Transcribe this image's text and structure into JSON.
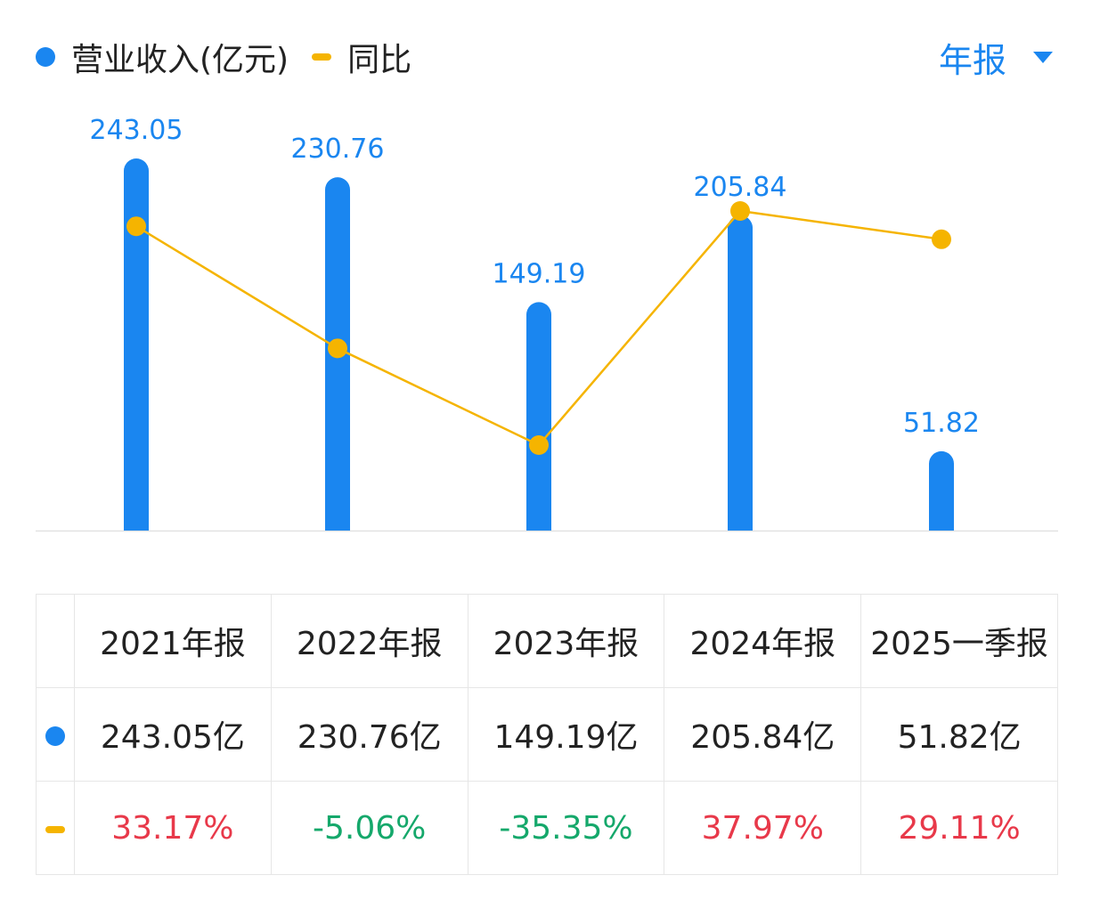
{
  "legend": {
    "revenue_label": "营业收入(亿元)",
    "yoy_label": "同比"
  },
  "period_selector": {
    "label": "年报"
  },
  "colors": {
    "bar": "#1a86f0",
    "line": "#f5b400",
    "positive": "#e8394a",
    "negative": "#15a86b"
  },
  "chart_data": {
    "type": "bar",
    "categories": [
      "2021年报",
      "2022年报",
      "2023年报",
      "2024年报",
      "2025一季报"
    ],
    "series": [
      {
        "name": "营业收入(亿元)",
        "type": "bar",
        "values": [
          243.05,
          230.76,
          149.19,
          205.84,
          51.82
        ],
        "labels": [
          "243.05",
          "230.76",
          "149.19",
          "205.84",
          "51.82"
        ]
      },
      {
        "name": "同比",
        "type": "line",
        "values": [
          33.17,
          -5.06,
          -35.35,
          37.97,
          29.11
        ]
      }
    ],
    "legend_position": "top-left",
    "grid": false
  },
  "table": {
    "headers": [
      "2021年报",
      "2022年报",
      "2023年报",
      "2024年报",
      "2025一季报"
    ],
    "revenue": [
      "243.05亿",
      "230.76亿",
      "149.19亿",
      "205.84亿",
      "51.82亿"
    ],
    "yoy": [
      "33.17%",
      "-5.06%",
      "-35.35%",
      "37.97%",
      "29.11%"
    ]
  }
}
